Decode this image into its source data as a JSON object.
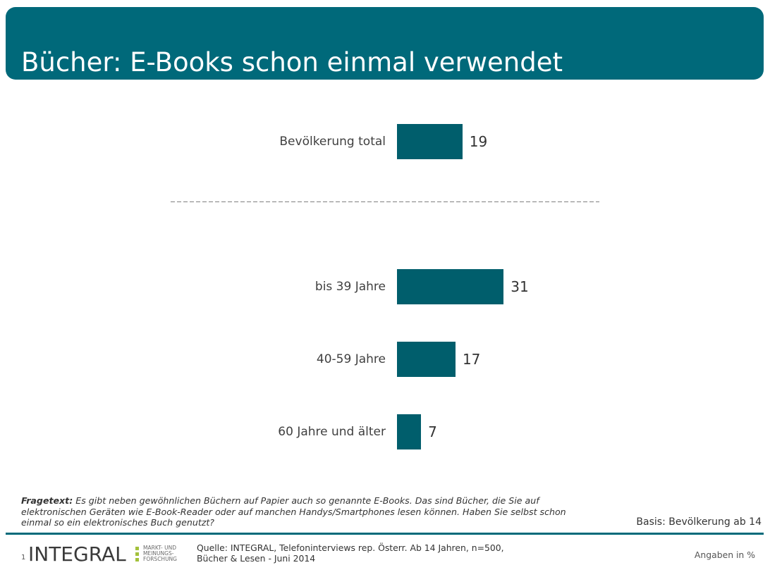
{
  "chart_data": {
    "type": "bar",
    "horizontal": true,
    "title": "Bücher: E-Books schon einmal verwendet",
    "categories": [
      "Bevölkerung total",
      "bis 39 Jahre",
      "40-59 Jahre",
      "60 Jahre und älter"
    ],
    "values": [
      19,
      31,
      17,
      7
    ],
    "color": "#005e6c",
    "grid": false,
    "show_legend": false,
    "show_axes": false
  },
  "question": {
    "label": "Fragetext:",
    "text": "Es gibt neben gewöhnlichen Büchern auf Papier auch so genannte E-Books. Das sind Bücher, die Sie auf elektronischen Geräten wie E-Book-Reader oder auf manchen Handys/Smartphones lesen können. Haben Sie selbst schon einmal so ein elektronisches Buch genutzt?"
  },
  "basis": "Basis: Bevölkerung ab 14",
  "footer": {
    "page_number": "1",
    "logo": {
      "wordmark": "INTEGRAL",
      "tagline": [
        "MARKT- UND",
        "MEINUNGS-",
        "FORSCHUNG"
      ]
    },
    "source_lines": [
      "Quelle: INTEGRAL, Telefoninterviews rep. Österr. Ab 14 Jahren, n=500,",
      "Bücher & Lesen - Juni 2014"
    ],
    "unit_note": "Angaben in %"
  },
  "colors": {
    "header": "#00697a",
    "rule": "#006a7a",
    "logo_green": "#a3c13b"
  }
}
